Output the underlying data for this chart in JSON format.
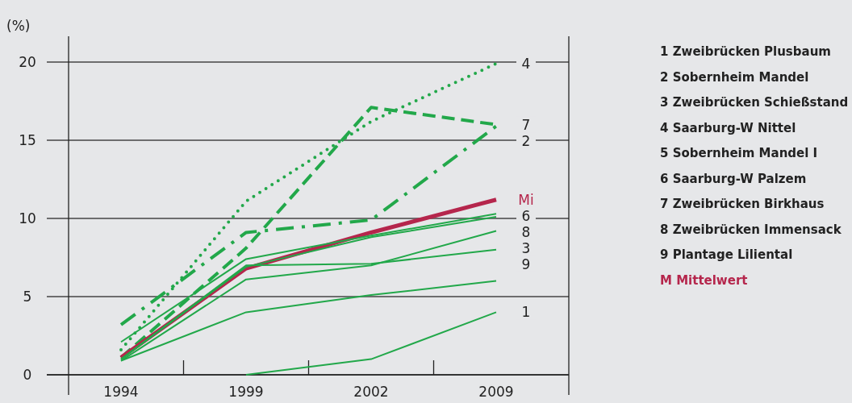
{
  "chart_data": {
    "type": "line",
    "ylabel": "(%)",
    "categories": [
      "1994",
      "1999",
      "2002",
      "2009"
    ],
    "ylim": [
      0,
      20
    ],
    "yticks": [
      0,
      5,
      10,
      15,
      20
    ],
    "grid": "y",
    "series": [
      {
        "name": "4",
        "color": "#22a84a",
        "line_style": "dotted",
        "values": [
          1.6,
          11.1,
          16.2,
          19.9
        ]
      },
      {
        "name": "7",
        "color": "#22a84a",
        "line_style": "dashed",
        "values": [
          1.1,
          8.1,
          17.1,
          16.0
        ]
      },
      {
        "name": "2",
        "color": "#22a84a",
        "line_style": "dashdot",
        "values": [
          3.2,
          9.1,
          9.9,
          15.9
        ]
      },
      {
        "name": "Mi",
        "color": "#b5264c",
        "line_style": "solid",
        "values": [
          1.1,
          6.8,
          9.1,
          11.2
        ]
      },
      {
        "name": "6",
        "color": "#22a84a",
        "line_style": "solid",
        "values": [
          2.1,
          7.4,
          8.9,
          10.3
        ]
      },
      {
        "name": "8",
        "color": "#22a84a",
        "line_style": "solid",
        "values": [
          1.0,
          6.9,
          8.8,
          10.1
        ]
      },
      {
        "name": "3",
        "color": "#22a84a",
        "line_style": "solid",
        "values": [
          0.9,
          6.1,
          7.0,
          9.2
        ]
      },
      {
        "name": "9",
        "color": "#22a84a",
        "line_style": "solid",
        "values": [
          1.0,
          7.0,
          7.1,
          8.0
        ]
      },
      {
        "color": "#22a84a",
        "line_style": "solid",
        "values": [
          0.9,
          4.0,
          5.1,
          6.0
        ]
      },
      {
        "name": "1",
        "color": "#22a84a",
        "line_style": "solid",
        "values": [
          null,
          0.0,
          1.0,
          4.0
        ]
      }
    ],
    "annotations": [
      "1 Zweibrücken Plusbaum",
      "2 Sobernheim Mandel",
      "3 Zweibrücken Schießstand",
      "4 Saarburg-W Nittel",
      "5 Sobernheim Mandel I",
      "6 Saarburg-W Palzem",
      "7 Zweibrücken Birkhaus",
      "8 Zweibrücken Immensack",
      "9 Plantage Liliental",
      "M Mittelwert"
    ]
  }
}
